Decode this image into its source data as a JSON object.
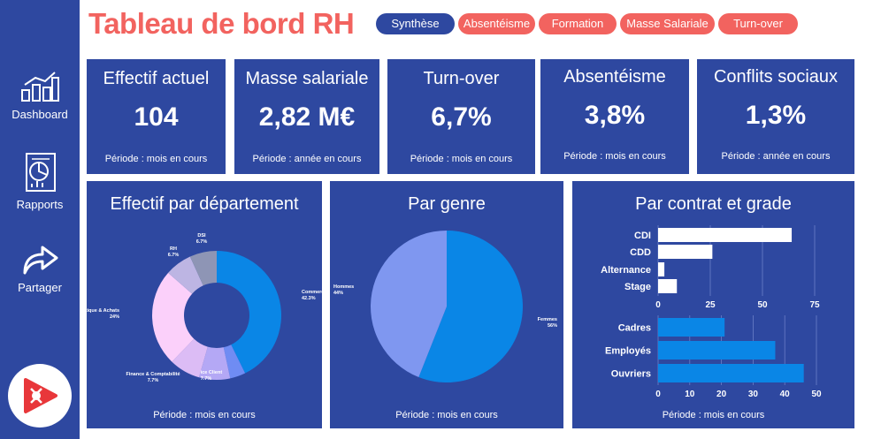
{
  "sidebar": {
    "items": [
      {
        "label": "Dashboard",
        "icon": "bar-chart-icon"
      },
      {
        "label": "Rapports",
        "icon": "report-icon"
      },
      {
        "label": "Partager",
        "icon": "share-arrow-icon"
      }
    ],
    "logo_icon": "brand-logo-icon"
  },
  "header": {
    "title": "Tableau de bord RH",
    "tabs": [
      {
        "label": "Synthèse",
        "active": true
      },
      {
        "label": "Absentéisme",
        "active": false
      },
      {
        "label": "Formation",
        "active": false
      },
      {
        "label": "Masse Salariale",
        "active": false
      },
      {
        "label": "Turn-over",
        "active": false
      }
    ]
  },
  "kpis": [
    {
      "label": "Effectif actuel",
      "value": "104",
      "period": "Période : mois en cours"
    },
    {
      "label": "Masse salariale",
      "value": "2,82 M€",
      "period": "Période : année en cours"
    },
    {
      "label": "Turn-over",
      "value": "6,7%",
      "period": "Période : mois en cours"
    },
    {
      "label": "Absentéisme",
      "value": "3,8%",
      "period": "Période : mois en cours"
    },
    {
      "label": "Conflits sociaux",
      "value": "1,3%",
      "period": "Période : année en cours"
    }
  ],
  "panels": {
    "departement": {
      "title": "Effectif par département",
      "period": "Période : mois en cours"
    },
    "genre": {
      "title": "Par genre",
      "period": "Période : mois en cours"
    },
    "contrat": {
      "title": "Par contrat et grade",
      "period": "Période : mois en cours"
    }
  },
  "colors": {
    "brand_blue": "#2e48a0",
    "accent_coral": "#f2635f",
    "chart_blue": "#0a86e6",
    "women_blue": "#0a86e6",
    "men_blue": "#7f97f0"
  },
  "chart_data": [
    {
      "type": "pie",
      "variant": "donut",
      "title": "Effectif par département",
      "slices": [
        {
          "name": "Commerce",
          "label": "42.3%",
          "value": 42.3,
          "color": "#0a86e6"
        },
        {
          "name": "",
          "label": "",
          "value": 3.85,
          "color": "#6f8cf3"
        },
        {
          "name": "Service Client",
          "label": "7.7%",
          "value": 7.7,
          "color": "#b4a8f5"
        },
        {
          "name": "Finance & Comptabilité",
          "label": "7.7%",
          "value": 7.7,
          "color": "#dcbcf5"
        },
        {
          "name": "Logistique & Achats",
          "label": "24%",
          "value": 24,
          "color": "#fbd0fa"
        },
        {
          "name": "RH",
          "label": "6.7%",
          "value": 6.7,
          "color": "#bdb5e3"
        },
        {
          "name": "DSI",
          "label": "6.7%",
          "value": 6.7,
          "color": "#8e95b5"
        }
      ]
    },
    {
      "type": "pie",
      "title": "Par genre",
      "slices": [
        {
          "name": "Femmes",
          "label": "56%",
          "value": 56,
          "color": "#0a86e6"
        },
        {
          "name": "Hommes",
          "label": "44%",
          "value": 44,
          "color": "#7f97f0"
        }
      ]
    },
    {
      "type": "bar",
      "orientation": "horizontal",
      "title": "Par contrat et grade",
      "categories": [
        "CDI",
        "CDD",
        "Alternance",
        "Stage"
      ],
      "values": [
        64,
        26,
        3,
        9
      ],
      "xlim": [
        0,
        75
      ],
      "xticks": [
        0,
        25,
        50,
        75
      ],
      "bar_color": "#ffffff"
    },
    {
      "type": "bar",
      "orientation": "horizontal",
      "categories": [
        "Cadres",
        "Employés",
        "Ouvriers"
      ],
      "values": [
        21,
        37,
        46
      ],
      "xlim": [
        0,
        50
      ],
      "xticks": [
        0,
        10,
        20,
        30,
        40,
        50
      ],
      "bar_color": "#0a86e6"
    }
  ]
}
